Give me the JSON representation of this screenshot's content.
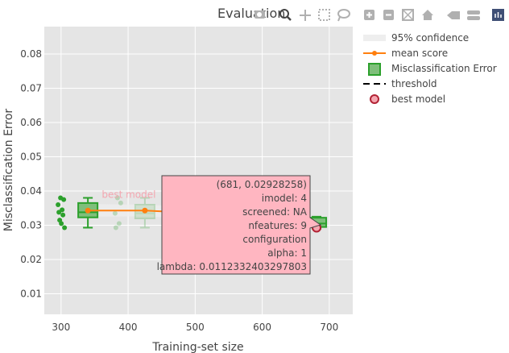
{
  "chart_data": {
    "type": "box",
    "title": "Evaluation",
    "xlabel": "Training-set size",
    "ylabel": "Misclassification Error",
    "xlim": [
      275,
      735
    ],
    "ylim": [
      0.004,
      0.088
    ],
    "xticks": [
      300,
      400,
      500,
      600,
      700
    ],
    "yticks": [
      0.01,
      0.02,
      0.03,
      0.04,
      0.05,
      0.06,
      0.07,
      0.08
    ],
    "xtick_labels": [
      "300",
      "400",
      "500",
      "600",
      "700"
    ],
    "ytick_labels": [
      "0.01",
      "0.02",
      "0.03",
      "0.04",
      "0.05",
      "0.06",
      "0.07",
      "0.08"
    ],
    "grid": true,
    "legend_position": "right",
    "legend": [
      {
        "key": "confidence",
        "label": "95% confidence"
      },
      {
        "key": "mean",
        "label": "mean score"
      },
      {
        "key": "boxes",
        "label": "Misclassification Error"
      },
      {
        "key": "threshold",
        "label": "threshold"
      },
      {
        "key": "best",
        "label": "best model"
      }
    ],
    "boxes": [
      {
        "x": 340,
        "q1": 0.0323,
        "median": 0.0338,
        "q3": 0.0365,
        "lower": 0.0293,
        "upper": 0.038,
        "points": [
          0.038,
          0.0375,
          0.036,
          0.0345,
          0.0338,
          0.033,
          0.0315,
          0.0305,
          0.0293
        ]
      },
      {
        "x": 425,
        "q1": 0.032,
        "median": 0.0335,
        "q3": 0.036,
        "lower": 0.0293,
        "upper": 0.038,
        "points": [
          0.038,
          0.0365,
          0.0335,
          0.0305,
          0.0293
        ]
      },
      {
        "x": 681,
        "q1": 0.0295,
        "median": 0.0305,
        "q3": 0.0322,
        "lower": 0.029,
        "upper": 0.0325,
        "points": []
      }
    ],
    "mean_series": {
      "x": [
        340,
        425,
        510,
        596,
        681
      ],
      "y": [
        0.0343,
        0.0343,
        0.0335,
        0.0318,
        0.0298
      ]
    },
    "confidence_band": {
      "x": [
        340,
        425,
        510,
        596,
        681
      ],
      "upper": [
        0.0362,
        0.036,
        0.0352,
        0.0336,
        0.0315
      ],
      "lower": [
        0.0325,
        0.0326,
        0.0318,
        0.03,
        0.0282
      ]
    },
    "best_model": {
      "x": 681,
      "y": 0.02928258,
      "label": "best model"
    },
    "hover": {
      "lines": [
        "(681, 0.02928258)",
        "imodel: 4",
        "screened: NA",
        "nfeatures: 9",
        "configuration",
        "alpha: 1",
        "lambda: 0.0112332403297803"
      ]
    },
    "colors": {
      "plot_bg": "#e5e5e5",
      "grid": "#ffffff",
      "mean": "#ff7f0e",
      "box_fill": "#7fbf7b",
      "box_line": "#2ca02c",
      "points": "#2ca02c",
      "best_fill": "#f4a6b0",
      "best_line": "#b22234",
      "hover_bg": "#ffb6c1",
      "hover_border": "#444444",
      "confidence": "#eeeeee"
    }
  },
  "modebar": {
    "icons": [
      "camera-icon",
      "zoom-icon",
      "pan-icon",
      "box-select-icon",
      "lasso-icon",
      "zoom-in-icon",
      "zoom-out-icon",
      "autoscale-icon",
      "reset-axes-icon",
      "spike-lines-icon",
      "compare-hover-icon",
      "plotly-logo-icon"
    ]
  }
}
